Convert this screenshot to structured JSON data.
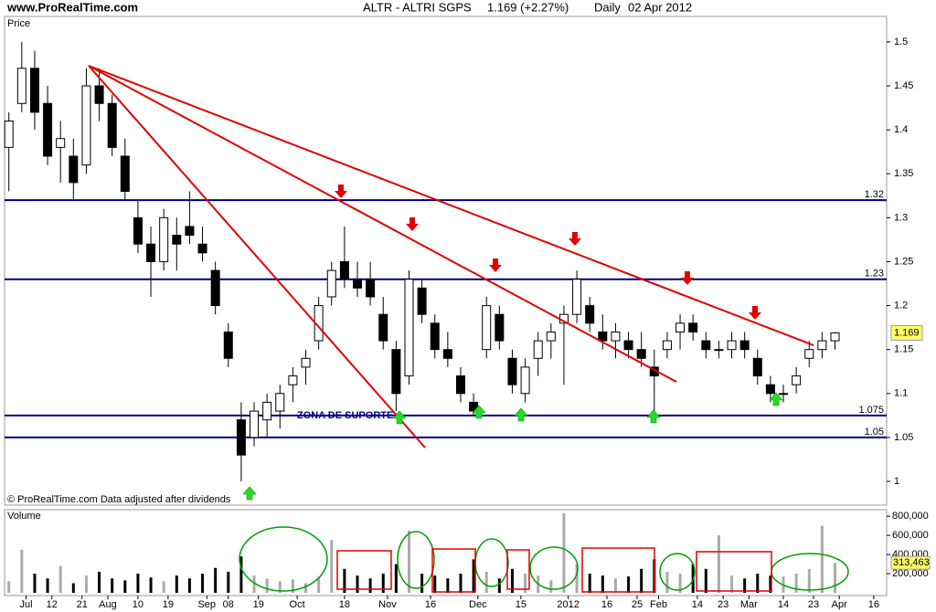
{
  "site": "www.ProRealTime.com",
  "chart_data": {
    "type": "candlestick",
    "title": "ALTR - ALTRI SGPS",
    "quote": "1.169 (+2.27%)",
    "period": "Daily",
    "date": "02 Apr 2012",
    "price_label": "Price",
    "volume_label_title": "Volume",
    "footnote": "© ProRealTime.com  Data adjusted after dividends",
    "annotation": "ZONA DE SUPORTE",
    "x": [
      0,
      3,
      6,
      9,
      12,
      15,
      18,
      21,
      24,
      27,
      30,
      33,
      36,
      39,
      42,
      45,
      48,
      51,
      54,
      57,
      60,
      63,
      66,
      69,
      72,
      75,
      78,
      81,
      84,
      87,
      90,
      93,
      96,
      99,
      102,
      105,
      108,
      111,
      114,
      117,
      120,
      123,
      126,
      129,
      132,
      135,
      138,
      141,
      144,
      147,
      150,
      153,
      156,
      159,
      162,
      165,
      168,
      171,
      174,
      177,
      180,
      183,
      186,
      189,
      192
    ],
    "open": [
      1.38,
      1.43,
      1.47,
      1.43,
      1.38,
      1.37,
      1.36,
      1.45,
      1.43,
      1.37,
      1.3,
      1.27,
      1.25,
      1.28,
      1.29,
      1.27,
      1.24,
      1.17,
      1.07,
      1.05,
      1.07,
      1.08,
      1.11,
      1.13,
      1.16,
      1.21,
      1.25,
      1.23,
      1.23,
      1.19,
      1.15,
      1.12,
      1.22,
      1.18,
      1.15,
      1.12,
      1.09,
      1.15,
      1.19,
      1.14,
      1.1,
      1.14,
      1.16,
      1.18,
      1.19,
      1.2,
      1.17,
      1.16,
      1.16,
      1.15,
      1.13,
      1.15,
      1.17,
      1.18,
      1.16,
      1.15,
      1.15,
      1.16,
      1.14,
      1.11,
      1.1,
      1.11,
      1.14,
      1.15,
      1.16
    ],
    "high": [
      1.42,
      1.5,
      1.49,
      1.45,
      1.41,
      1.39,
      1.47,
      1.47,
      1.44,
      1.39,
      1.32,
      1.29,
      1.31,
      1.3,
      1.33,
      1.29,
      1.25,
      1.18,
      1.09,
      1.09,
      1.1,
      1.11,
      1.13,
      1.15,
      1.21,
      1.25,
      1.29,
      1.25,
      1.25,
      1.21,
      1.16,
      1.24,
      1.23,
      1.19,
      1.17,
      1.13,
      1.1,
      1.21,
      1.2,
      1.15,
      1.14,
      1.17,
      1.18,
      1.2,
      1.24,
      1.21,
      1.19,
      1.18,
      1.17,
      1.17,
      1.15,
      1.17,
      1.19,
      1.19,
      1.17,
      1.16,
      1.17,
      1.17,
      1.15,
      1.12,
      1.11,
      1.13,
      1.16,
      1.17,
      1.17
    ],
    "low": [
      1.33,
      1.42,
      1.4,
      1.36,
      1.34,
      1.32,
      1.35,
      1.41,
      1.37,
      1.32,
      1.26,
      1.21,
      1.24,
      1.24,
      1.27,
      1.25,
      1.19,
      1.13,
      1.0,
      1.04,
      1.05,
      1.06,
      1.09,
      1.11,
      1.15,
      1.2,
      1.22,
      1.21,
      1.2,
      1.15,
      1.08,
      1.11,
      1.18,
      1.14,
      1.13,
      1.09,
      1.075,
      1.14,
      1.15,
      1.1,
      1.09,
      1.12,
      1.14,
      1.11,
      1.18,
      1.17,
      1.15,
      1.14,
      1.14,
      1.13,
      1.08,
      1.14,
      1.15,
      1.16,
      1.14,
      1.14,
      1.14,
      1.14,
      1.11,
      1.09,
      1.09,
      1.1,
      1.13,
      1.14,
      1.15
    ],
    "close": [
      1.41,
      1.47,
      1.42,
      1.37,
      1.39,
      1.34,
      1.45,
      1.43,
      1.38,
      1.33,
      1.27,
      1.25,
      1.3,
      1.27,
      1.28,
      1.26,
      1.2,
      1.14,
      1.03,
      1.08,
      1.09,
      1.1,
      1.12,
      1.14,
      1.2,
      1.24,
      1.23,
      1.22,
      1.21,
      1.16,
      1.1,
      1.23,
      1.19,
      1.15,
      1.14,
      1.1,
      1.08,
      1.2,
      1.16,
      1.11,
      1.13,
      1.16,
      1.17,
      1.19,
      1.23,
      1.18,
      1.16,
      1.17,
      1.15,
      1.14,
      1.12,
      1.16,
      1.18,
      1.17,
      1.15,
      1.15,
      1.16,
      1.15,
      1.12,
      1.1,
      1.1,
      1.12,
      1.15,
      1.16,
      1.169
    ],
    "volume": [
      120000,
      450000,
      200000,
      150000,
      280000,
      100000,
      180000,
      220000,
      150000,
      130000,
      200000,
      160000,
      120000,
      180000,
      150000,
      200000,
      260000,
      220000,
      380000,
      180000,
      150000,
      120000,
      140000,
      100000,
      160000,
      550000,
      250000,
      180000,
      150000,
      200000,
      300000,
      650000,
      200000,
      180000,
      150000,
      200000,
      350000,
      220000,
      150000,
      250000,
      200000,
      180000,
      130000,
      830000,
      300000,
      200000,
      180000,
      150000,
      170000,
      250000,
      350000,
      220000,
      200000,
      300000,
      250000,
      600000,
      180000,
      150000,
      200000,
      180000,
      170000,
      200000,
      250000,
      700000,
      313463
    ],
    "volume_label": "313,463",
    "xlim": [
      -1,
      204
    ],
    "xticks": [
      {
        "value": 4,
        "label": "Jul"
      },
      {
        "value": 10,
        "label": "12"
      },
      {
        "value": 17,
        "label": "21"
      },
      {
        "value": 23,
        "label": "Aug"
      },
      {
        "value": 30,
        "label": "10"
      },
      {
        "value": 37,
        "label": "19"
      },
      {
        "value": 46,
        "label": "Sep"
      },
      {
        "value": 51,
        "label": "08"
      },
      {
        "value": 58,
        "label": "19"
      },
      {
        "value": 67,
        "label": "Oct"
      },
      {
        "value": 78,
        "label": "18"
      },
      {
        "value": 88,
        "label": "Nov"
      },
      {
        "value": 98,
        "label": "16"
      },
      {
        "value": 109,
        "label": "Dec"
      },
      {
        "value": 119,
        "label": "15"
      },
      {
        "value": 130,
        "label": "2012"
      },
      {
        "value": 139,
        "label": "16"
      },
      {
        "value": 146,
        "label": "25"
      },
      {
        "value": 151,
        "label": "Feb"
      },
      {
        "value": 160,
        "label": "14"
      },
      {
        "value": 166,
        "label": "23"
      },
      {
        "value": 172,
        "label": "Mar"
      },
      {
        "value": 180,
        "label": "14"
      },
      {
        "value": 187,
        "label": "23"
      },
      {
        "value": 193,
        "label": "Apr"
      },
      {
        "value": 201,
        "label": "16"
      }
    ],
    "ylim": [
      0.973,
      1.529
    ],
    "yticks": [
      1,
      1.05,
      1.1,
      1.15,
      1.2,
      1.25,
      1.3,
      1.35,
      1.4,
      1.45,
      1.5
    ],
    "levels": [
      1.32,
      1.23,
      1.075,
      1.05
    ],
    "level_color": "#000080",
    "volume_ylim": [
      0,
      830000
    ],
    "volume_yticks": [
      {
        "value": 200000,
        "label": "200,000"
      },
      {
        "value": 400000,
        "label": "400,000"
      },
      {
        "value": 600000,
        "label": "600,000"
      },
      {
        "value": 800000,
        "label": "800,000"
      }
    ]
  }
}
